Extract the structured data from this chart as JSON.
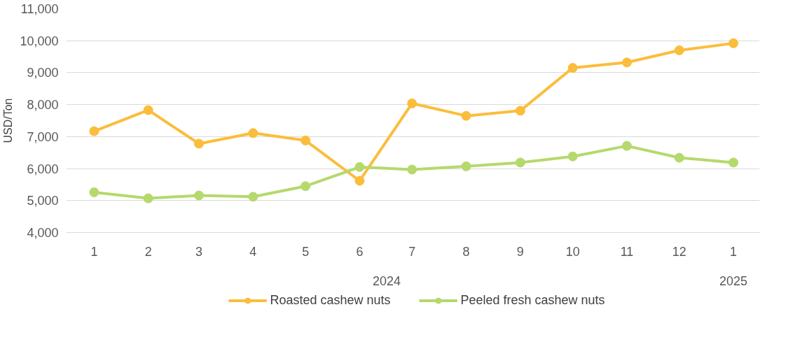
{
  "chart_data": {
    "type": "line",
    "ylabel": "USD/Ton",
    "x": [
      "2024-01",
      "2024-02",
      "2024-03",
      "2024-04",
      "2024-05",
      "2024-06",
      "2024-07",
      "2024-08",
      "2024-09",
      "2024-10",
      "2024-11",
      "2024-12",
      "2025-01"
    ],
    "xlim": [
      "2023-12-16",
      "2025-01-16"
    ],
    "xticks": [
      {
        "value": "2024-01",
        "label": "1"
      },
      {
        "value": "2024-02",
        "label": "2"
      },
      {
        "value": "2024-03",
        "label": "3"
      },
      {
        "value": "2024-04",
        "label": "4"
      },
      {
        "value": "2024-05",
        "label": "5"
      },
      {
        "value": "2024-06",
        "label": "6"
      },
      {
        "value": "2024-07",
        "label": "7"
      },
      {
        "value": "2024-08",
        "label": "8"
      },
      {
        "value": "2024-09",
        "label": "9"
      },
      {
        "value": "2024-10",
        "label": "10"
      },
      {
        "value": "2024-11",
        "label": "11"
      },
      {
        "value": "2024-12",
        "label": "12"
      },
      {
        "value": "2025-01",
        "label": "1"
      }
    ],
    "annotations": [
      "2024",
      "2025"
    ],
    "series": [
      {
        "name": "Roasted cashew nuts",
        "color": "#fbbd3c",
        "values": [
          7170,
          7830,
          6780,
          7110,
          6880,
          5620,
          8040,
          7650,
          7810,
          9150,
          9320,
          9700,
          9920
        ]
      },
      {
        "name": "Peeled fresh cashew nuts",
        "color": "#b5d96b",
        "values": [
          5260,
          5070,
          5160,
          5120,
          5450,
          6050,
          5970,
          6070,
          6190,
          6380,
          6710,
          6340,
          6190
        ]
      }
    ],
    "ylim": [
      4000,
      11000
    ],
    "yticks": [
      {
        "value": 4000,
        "label": "4,000"
      },
      {
        "value": 5000,
        "label": "5,000"
      },
      {
        "value": 6000,
        "label": "6,000"
      },
      {
        "value": 7000,
        "label": "7,000"
      },
      {
        "value": 8000,
        "label": "8,000"
      },
      {
        "value": 9000,
        "label": "9,000"
      },
      {
        "value": 10000,
        "label": "10,000"
      },
      {
        "value": 11000,
        "label": "11,000"
      }
    ],
    "grid": "y",
    "legend": "bottom",
    "marker": "circle",
    "line_style": "solid"
  }
}
